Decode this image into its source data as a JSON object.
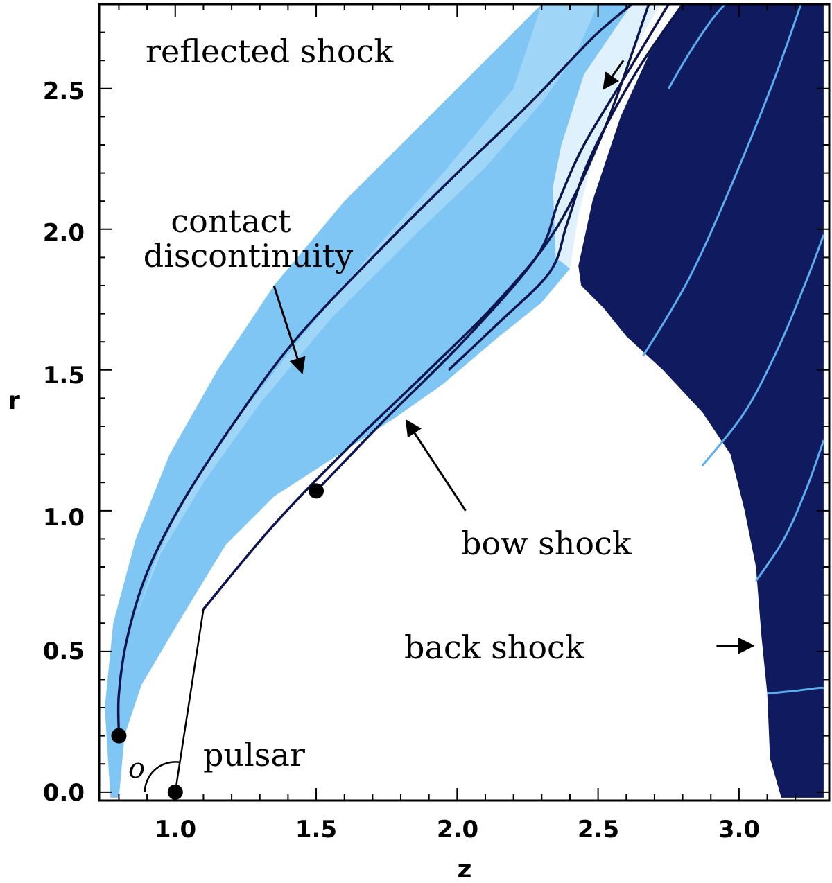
{
  "chart_data": {
    "type": "area",
    "title": "",
    "xlabel": "z",
    "ylabel": "r",
    "xlim": [
      0.73,
      3.32
    ],
    "ylim": [
      -0.03,
      2.8
    ],
    "xticks": [
      1.0,
      1.5,
      2.0,
      2.5,
      3.0
    ],
    "yticks": [
      0.0,
      0.5,
      1.0,
      1.5,
      2.0,
      2.5
    ],
    "xtick_labels": [
      "1.0",
      "1.5",
      "2.0",
      "2.5",
      "3.0"
    ],
    "ytick_labels": [
      "0.0",
      "0.5",
      "1.0",
      "1.5",
      "2.0",
      "2.5"
    ],
    "grid": false,
    "colors": {
      "shocked_outer": "#7fc6f4",
      "shocked_inner": "#9fd6f8",
      "reflected_layer": "#dff1fd",
      "back_region": "#0f1b5e",
      "streamline_dark": "#0d1550",
      "streamline_light": "#5aaeef"
    },
    "regions": [
      {
        "name": "bow shock layer",
        "polygon": [
          [
            0.77,
            -0.02
          ],
          [
            0.75,
            0.3
          ],
          [
            0.78,
            0.6
          ],
          [
            0.86,
            0.9
          ],
          [
            0.98,
            1.2
          ],
          [
            1.15,
            1.5
          ],
          [
            1.35,
            1.8
          ],
          [
            1.6,
            2.1
          ],
          [
            1.85,
            2.35
          ],
          [
            2.1,
            2.6
          ],
          [
            2.3,
            2.8
          ],
          [
            2.62,
            2.8
          ],
          [
            2.45,
            2.55
          ],
          [
            2.37,
            2.3
          ],
          [
            2.34,
            2.15
          ],
          [
            2.35,
            1.9
          ],
          [
            2.4,
            1.86
          ],
          [
            2.3,
            1.74
          ],
          [
            2.15,
            1.62
          ],
          [
            1.95,
            1.45
          ],
          [
            1.78,
            1.33
          ],
          [
            1.55,
            1.18
          ],
          [
            1.35,
            1.05
          ],
          [
            1.18,
            0.88
          ],
          [
            1.07,
            0.7
          ],
          [
            0.98,
            0.55
          ],
          [
            0.88,
            0.38
          ],
          [
            0.82,
            0.2
          ],
          [
            0.8,
            -0.02
          ]
        ]
      },
      {
        "name": "reflected shock layer",
        "polygon": [
          [
            2.62,
            2.8
          ],
          [
            2.72,
            2.8
          ],
          [
            2.58,
            2.55
          ],
          [
            2.48,
            2.25
          ],
          [
            2.43,
            2.05
          ],
          [
            2.4,
            1.86
          ],
          [
            2.35,
            1.9
          ],
          [
            2.34,
            2.15
          ],
          [
            2.37,
            2.3
          ],
          [
            2.45,
            2.55
          ]
        ]
      },
      {
        "name": "back region",
        "polygon": [
          [
            2.8,
            2.8
          ],
          [
            3.3,
            2.8
          ],
          [
            3.3,
            -0.02
          ],
          [
            3.15,
            -0.02
          ],
          [
            3.11,
            0.12
          ],
          [
            3.1,
            0.35
          ],
          [
            3.08,
            0.55
          ],
          [
            3.06,
            0.8
          ],
          [
            3.02,
            1.0
          ],
          [
            2.97,
            1.2
          ],
          [
            2.87,
            1.35
          ],
          [
            2.73,
            1.5
          ],
          [
            2.6,
            1.62
          ],
          [
            2.52,
            1.72
          ],
          [
            2.44,
            1.8
          ],
          [
            2.43,
            1.87
          ],
          [
            2.48,
            2.1
          ],
          [
            2.58,
            2.4
          ],
          [
            2.68,
            2.62
          ]
        ]
      }
    ],
    "series": [
      {
        "x": [
          0.8,
          0.8,
          0.83,
          0.9,
          1.02,
          1.2,
          1.42,
          1.7,
          1.98,
          2.26,
          2.48,
          2.62
        ],
        "y": [
          0.2,
          0.35,
          0.55,
          0.78,
          1.02,
          1.3,
          1.6,
          1.9,
          2.18,
          2.45,
          2.68,
          2.8
        ]
      },
      {
        "x": [
          1.1,
          1.35,
          1.62,
          1.9,
          2.15,
          2.35,
          2.52,
          2.68
        ],
        "y": [
          0.65,
          0.95,
          1.23,
          1.5,
          1.75,
          2.0,
          2.35,
          2.8
        ]
      },
      {
        "x": [
          1.5,
          1.75,
          2.02,
          2.28,
          2.36,
          2.45,
          2.6,
          2.75
        ],
        "y": [
          1.07,
          1.33,
          1.6,
          1.9,
          2.1,
          2.3,
          2.55,
          2.8
        ]
      },
      {
        "x": [
          1.97,
          2.15,
          2.33,
          2.39,
          2.47,
          2.63,
          2.8
        ],
        "y": [
          1.5,
          1.67,
          1.85,
          2.02,
          2.25,
          2.55,
          2.8
        ]
      },
      {
        "x": [
          2.66,
          2.82,
          2.97,
          3.12,
          3.22
        ],
        "y": [
          1.55,
          1.82,
          2.15,
          2.52,
          2.8
        ]
      },
      {
        "x": [
          2.87,
          3.02,
          3.14,
          3.24,
          3.3
        ],
        "y": [
          1.16,
          1.35,
          1.58,
          1.82,
          1.98
        ]
      },
      {
        "x": [
          3.06,
          3.16,
          3.24,
          3.3
        ],
        "y": [
          0.75,
          0.9,
          1.08,
          1.25
        ]
      },
      {
        "x": [
          3.1,
          3.2,
          3.28,
          3.3
        ],
        "y": [
          0.35,
          0.36,
          0.37,
          0.37
        ]
      },
      {
        "x": [
          2.75,
          2.82,
          2.9,
          2.95
        ],
        "y": [
          2.5,
          2.62,
          2.74,
          2.8
        ]
      }
    ],
    "points": [
      {
        "x": 0.8,
        "y": 0.2
      },
      {
        "x": 1.5,
        "y": 1.07
      },
      {
        "x": 1.0,
        "y": 0.0
      }
    ],
    "annotations": [
      {
        "text": "reflected shock",
        "x": 0.9,
        "y": 2.64,
        "arrow_from": [
          2.59,
          2.6
        ],
        "arrow_to": [
          2.52,
          2.5
        ]
      },
      {
        "text": "contact",
        "x": 1.15,
        "y": 2.02
      },
      {
        "text": "discontinuity",
        "x": 1.15,
        "y": 1.88
      },
      {
        "text": "bow shock",
        "x": 2.3,
        "y": 0.88,
        "arrow_from": [
          2.03,
          1.0
        ],
        "arrow_to": [
          1.82,
          1.32
        ]
      },
      {
        "text": "back shock",
        "x": 2.2,
        "y": 0.48,
        "arrow_from": [
          2.92,
          0.52
        ],
        "arrow_to": [
          3.05,
          0.52
        ]
      },
      {
        "text": "pulsar",
        "x": 1.28,
        "y": 0.11
      },
      {
        "text": "o",
        "x": 0.89,
        "y": 0.06
      }
    ],
    "contact_arrow": {
      "from": [
        1.35,
        1.8
      ],
      "to": [
        1.45,
        1.49
      ]
    },
    "theta_line": {
      "from": [
        1.0,
        0.0
      ],
      "to": [
        1.1,
        0.65
      ]
    }
  }
}
